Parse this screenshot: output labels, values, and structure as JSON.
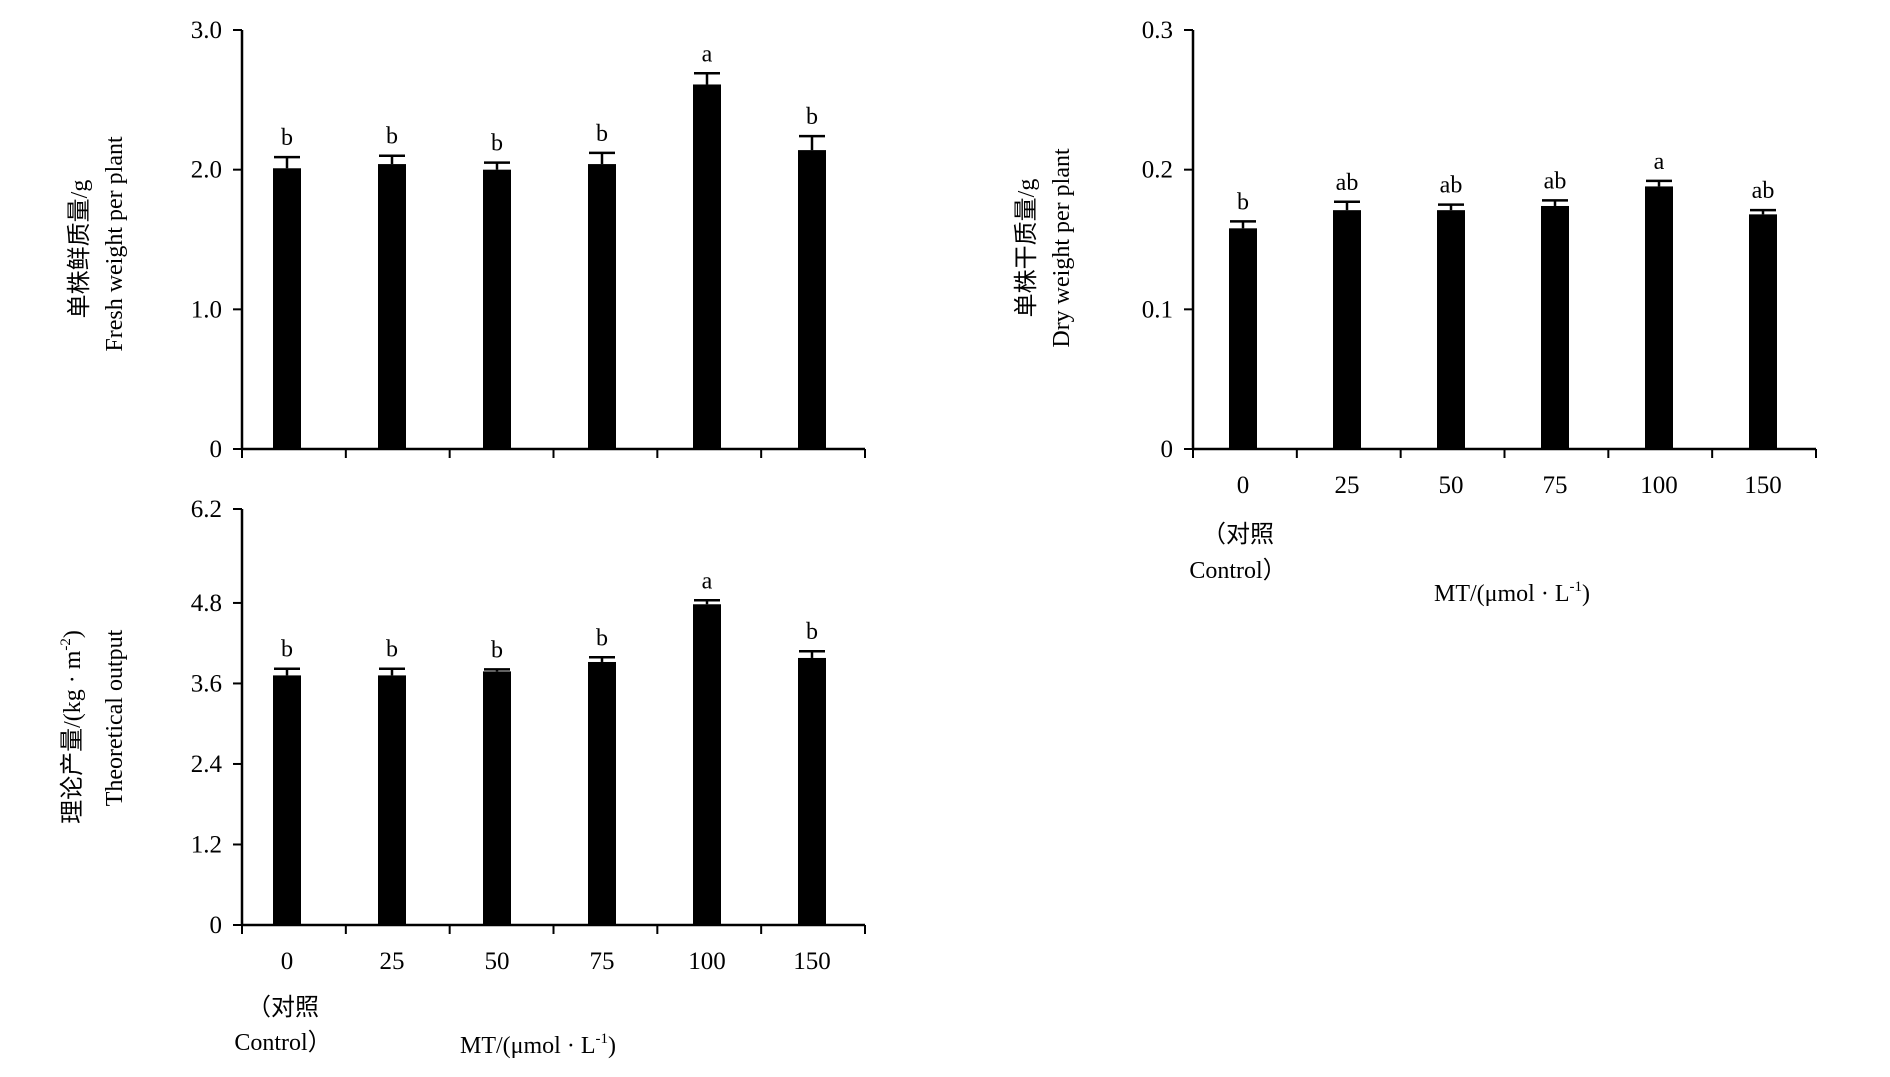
{
  "colors": {
    "bar": "#000000",
    "axis": "#000000",
    "background": "#ffffff"
  },
  "chart_data": [
    {
      "id": "fresh",
      "type": "bar",
      "title": "",
      "ylabel_cn": "单株鲜质量/g",
      "ylabel_en": "Fresh weight per plant",
      "xlabel": "",
      "categories": [
        "0",
        "25",
        "50",
        "75",
        "100",
        "150"
      ],
      "values": [
        2.01,
        2.04,
        2.0,
        2.04,
        2.61,
        2.14
      ],
      "errors": [
        0.08,
        0.06,
        0.05,
        0.08,
        0.08,
        0.1
      ],
      "significance": [
        "b",
        "b",
        "b",
        "b",
        "a",
        "b"
      ],
      "ylim": [
        0,
        3.0
      ],
      "yticks": [
        "0",
        "1.0",
        "2.0",
        "3.0"
      ],
      "ytick_values": [
        0,
        1,
        2,
        3
      ],
      "show_xtick_labels": false,
      "legend": "none",
      "grid": false
    },
    {
      "id": "dry",
      "type": "bar",
      "title": "",
      "ylabel_cn": "单株干质量/g",
      "ylabel_en": "Dry weight per plant",
      "xlabel": "MT/(μmol · L",
      "xlabel_sup": "-1",
      "xlabel_end": ")",
      "categories": [
        "0",
        "25",
        "50",
        "75",
        "100",
        "150"
      ],
      "category_note": [
        "（对照",
        "Control）"
      ],
      "values": [
        0.158,
        0.171,
        0.171,
        0.174,
        0.188,
        0.168
      ],
      "errors": [
        0.005,
        0.006,
        0.004,
        0.004,
        0.004,
        0.003
      ],
      "significance": [
        "b",
        "ab",
        "ab",
        "ab",
        "a",
        "ab"
      ],
      "ylim": [
        0,
        0.3
      ],
      "yticks": [
        "0",
        "0.1",
        "0.2",
        "0.3"
      ],
      "ytick_values": [
        0,
        0.1,
        0.2,
        0.3
      ],
      "show_xtick_labels": true,
      "legend": "none",
      "grid": false
    },
    {
      "id": "output",
      "type": "bar",
      "title": "",
      "ylabel_cn": "理论产量/(kg · m",
      "ylabel_sup": "-2",
      "ylabel_end": ")",
      "ylabel_en": "Theoretical output",
      "xlabel": "MT/(μmol · L",
      "xlabel_sup": "-1",
      "xlabel_end": ")",
      "categories": [
        "0",
        "25",
        "50",
        "75",
        "100",
        "150"
      ],
      "category_note": [
        "（对照",
        "Control）"
      ],
      "values": [
        3.72,
        3.72,
        3.78,
        3.92,
        4.78,
        3.98
      ],
      "errors": [
        0.1,
        0.1,
        0.03,
        0.07,
        0.06,
        0.1
      ],
      "significance": [
        "b",
        "b",
        "b",
        "b",
        "a",
        "b"
      ],
      "ylim": [
        0,
        6.2
      ],
      "yticks": [
        "0",
        "1.2",
        "2.4",
        "3.6",
        "4.8",
        "6.2"
      ],
      "ytick_values": [
        0,
        1.2,
        2.4,
        3.6,
        4.8,
        6.2
      ],
      "show_xtick_labels": true,
      "legend": "none",
      "grid": false
    }
  ]
}
